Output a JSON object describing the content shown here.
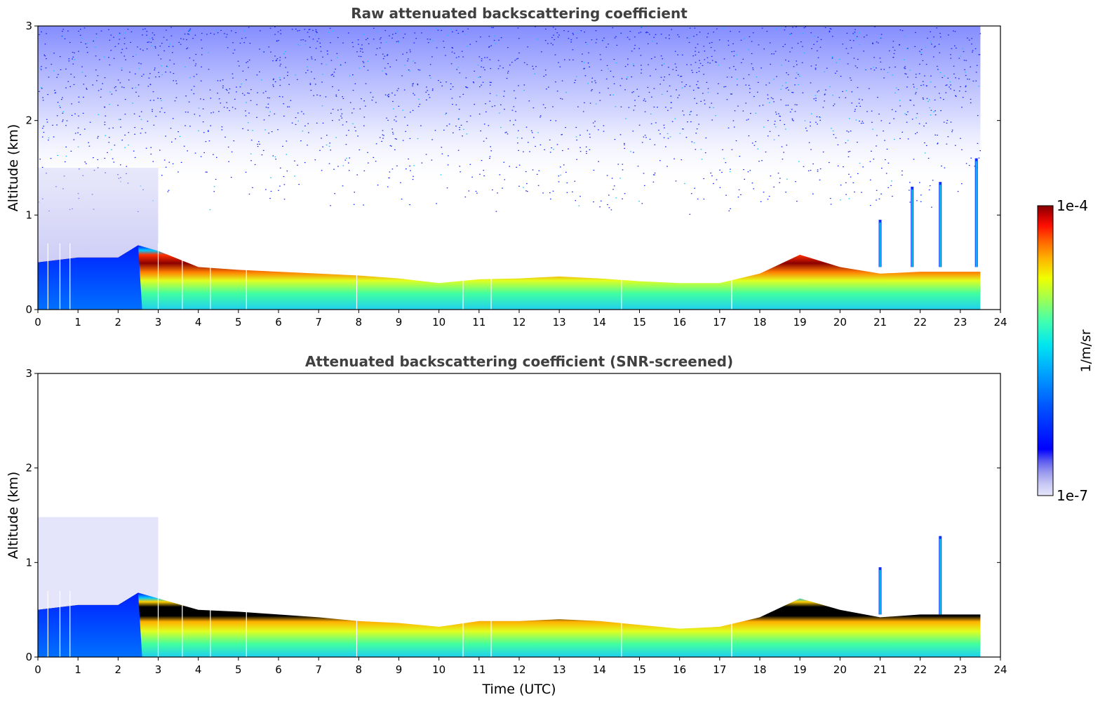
{
  "chart_data": [
    {
      "type": "heatmap",
      "title": "Raw attenuated backscattering coefficient",
      "xlabel": "",
      "ylabel": "Altitude (km)",
      "xlim": [
        0,
        24
      ],
      "ylim": [
        0,
        3
      ],
      "xticks": [
        "0",
        "1",
        "2",
        "3",
        "4",
        "5",
        "6",
        "7",
        "8",
        "9",
        "10",
        "11",
        "12",
        "13",
        "14",
        "15",
        "16",
        "17",
        "18",
        "19",
        "20",
        "21",
        "22",
        "23",
        "24"
      ],
      "yticks": [
        "0",
        "1",
        "2",
        "3"
      ],
      "data_end_time": 23.5,
      "boundary_layer_top_km": [
        [
          0,
          0.5
        ],
        [
          1,
          0.55
        ],
        [
          2,
          0.55
        ],
        [
          2.5,
          0.68
        ],
        [
          3,
          0.62
        ],
        [
          4,
          0.45
        ],
        [
          5,
          0.42
        ],
        [
          6,
          0.4
        ],
        [
          7,
          0.38
        ],
        [
          8,
          0.36
        ],
        [
          9,
          0.33
        ],
        [
          10,
          0.28
        ],
        [
          11,
          0.32
        ],
        [
          12,
          0.33
        ],
        [
          13,
          0.35
        ],
        [
          14,
          0.33
        ],
        [
          15,
          0.3
        ],
        [
          16,
          0.28
        ],
        [
          17,
          0.28
        ],
        [
          18,
          0.38
        ],
        [
          19,
          0.58
        ],
        [
          20,
          0.45
        ],
        [
          21,
          0.38
        ],
        [
          22,
          0.4
        ],
        [
          23,
          0.4
        ],
        [
          23.5,
          0.4
        ]
      ],
      "clouds": [
        {
          "time": 21.0,
          "top_km": 0.95
        },
        {
          "time": 21.8,
          "top_km": 1.3
        },
        {
          "time": 22.5,
          "top_km": 1.35
        },
        {
          "time": 23.4,
          "top_km": 1.6
        }
      ],
      "noise_upper": true
    },
    {
      "type": "heatmap",
      "title": "Attenuated backscattering coefficient (SNR-screened)",
      "xlabel": "Time (UTC)",
      "ylabel": "Altitude (km)",
      "xlim": [
        0,
        24
      ],
      "ylim": [
        0,
        3
      ],
      "xticks": [
        "0",
        "1",
        "2",
        "3",
        "4",
        "5",
        "6",
        "7",
        "8",
        "9",
        "10",
        "11",
        "12",
        "13",
        "14",
        "15",
        "16",
        "17",
        "18",
        "19",
        "20",
        "21",
        "22",
        "23",
        "24"
      ],
      "yticks": [
        "0",
        "1",
        "2",
        "3"
      ],
      "data_end_time": 23.5,
      "boundary_layer_top_km": [
        [
          0,
          0.5
        ],
        [
          1,
          0.55
        ],
        [
          2,
          0.55
        ],
        [
          2.5,
          0.68
        ],
        [
          3,
          0.62
        ],
        [
          4,
          0.5
        ],
        [
          5,
          0.48
        ],
        [
          6,
          0.45
        ],
        [
          7,
          0.42
        ],
        [
          8,
          0.38
        ],
        [
          9,
          0.36
        ],
        [
          10,
          0.32
        ],
        [
          11,
          0.38
        ],
        [
          12,
          0.38
        ],
        [
          13,
          0.4
        ],
        [
          14,
          0.38
        ],
        [
          15,
          0.34
        ],
        [
          16,
          0.3
        ],
        [
          17,
          0.32
        ],
        [
          18,
          0.42
        ],
        [
          19,
          0.62
        ],
        [
          20,
          0.5
        ],
        [
          21,
          0.42
        ],
        [
          22,
          0.45
        ],
        [
          23,
          0.45
        ],
        [
          23.5,
          0.45
        ]
      ],
      "clouds": [
        {
          "time": 21.0,
          "top_km": 0.95
        },
        {
          "time": 22.5,
          "top_km": 1.28
        }
      ],
      "noise_upper": false
    }
  ],
  "colorbar": {
    "max_label": "1e-4",
    "min_label": "1e-7",
    "label": "1/m/sr",
    "colormap": [
      "#e6e6fa",
      "#c8c8f5",
      "#9a9aee",
      "#5a5af0",
      "#0000ff",
      "#0050ff",
      "#00a0ff",
      "#00e6f0",
      "#40ffb0",
      "#a0ff50",
      "#f0ff00",
      "#ffb000",
      "#ff6000",
      "#ff1000",
      "#c00000",
      "#800000"
    ]
  }
}
